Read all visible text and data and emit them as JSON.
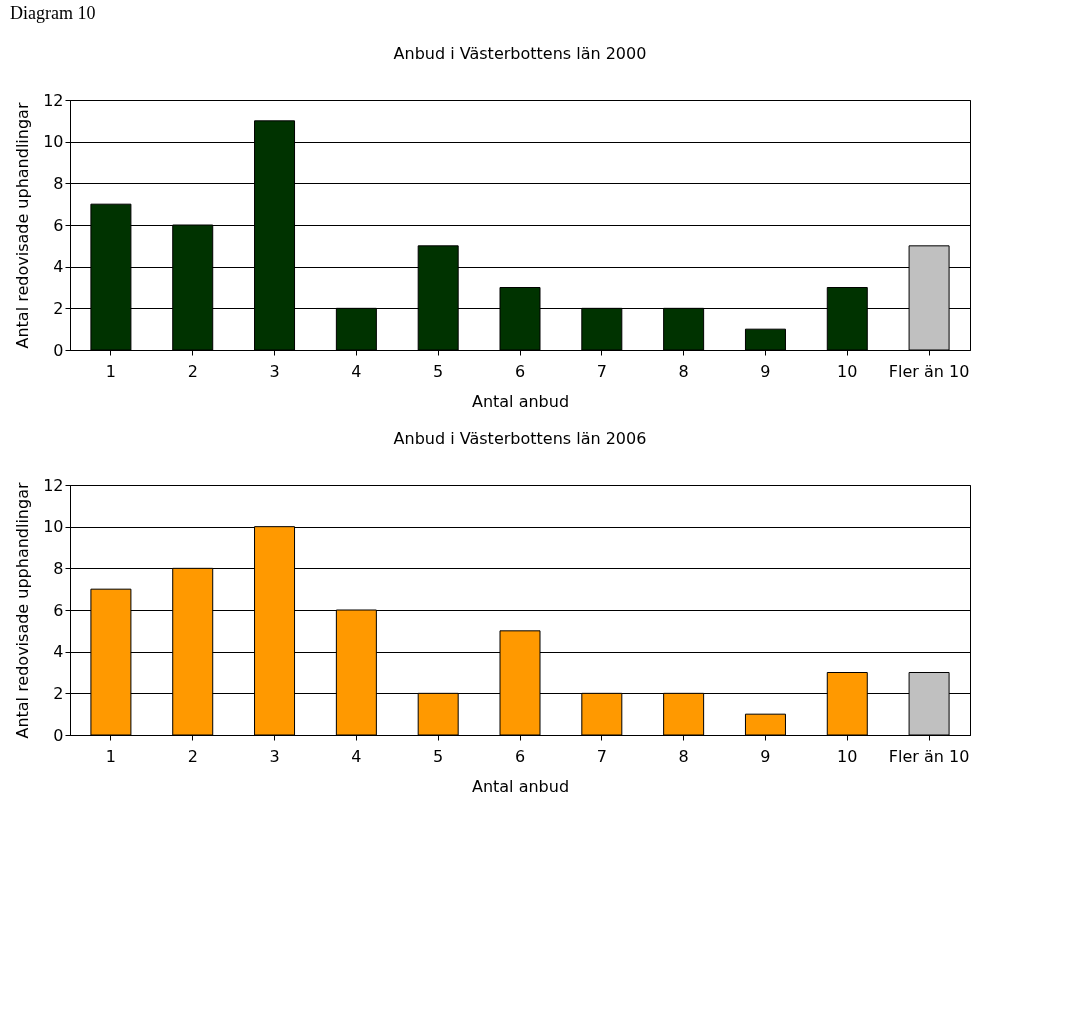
{
  "chart_data": [
    {
      "type": "bar",
      "title": "Anbud i Västerbottens län 2000",
      "xlabel": "Antal anbud",
      "ylabel": "Antal redovisade uphandlingar",
      "annotations": [
        "Diagram 10"
      ],
      "categories": [
        "1",
        "2",
        "3",
        "4",
        "5",
        "6",
        "7",
        "8",
        "9",
        "10",
        "Fler än 10"
      ],
      "values": [
        7,
        6,
        11,
        2,
        5,
        3,
        2,
        2,
        1,
        3,
        5
      ],
      "colors": [
        "#003300",
        "#003300",
        "#003300",
        "#003300",
        "#003300",
        "#003300",
        "#003300",
        "#003300",
        "#003300",
        "#003300",
        "#c0c0c0"
      ],
      "ylim": [
        0,
        12
      ],
      "yticks": [
        0,
        2,
        4,
        6,
        8,
        10,
        12
      ],
      "grid": "y"
    },
    {
      "type": "bar",
      "title": "Anbud i Västerbottens län 2006",
      "xlabel": "Antal anbud",
      "ylabel": "Antal redovisade upphandlingar",
      "categories": [
        "1",
        "2",
        "3",
        "4",
        "5",
        "6",
        "7",
        "8",
        "9",
        "10",
        "Fler än 10"
      ],
      "values": [
        7,
        8,
        10,
        6,
        2,
        5,
        2,
        2,
        1,
        3,
        3
      ],
      "colors": [
        "#ff9900",
        "#ff9900",
        "#ff9900",
        "#ff9900",
        "#ff9900",
        "#ff9900",
        "#ff9900",
        "#ff9900",
        "#ff9900",
        "#ff9900",
        "#c0c0c0"
      ],
      "ylim": [
        0,
        12
      ],
      "yticks": [
        0,
        2,
        4,
        6,
        8,
        10,
        12
      ],
      "grid": "y"
    }
  ]
}
